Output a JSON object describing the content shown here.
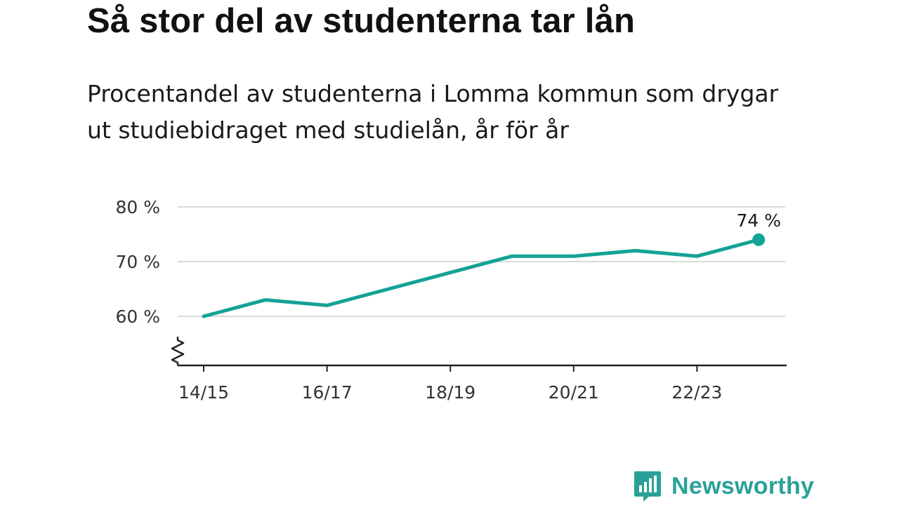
{
  "title": "Så stor del av studenterna tar lån",
  "subtitle": "Procentandel av studenterna i Lomma kommun som drygar ut studiebidraget med studielån, år för år",
  "chart_data": {
    "type": "line",
    "x": [
      "14/15",
      "15/16",
      "16/17",
      "17/18",
      "18/19",
      "19/20",
      "20/21",
      "21/22",
      "22/23",
      "23/24"
    ],
    "series": [
      {
        "values": [
          60,
          63,
          62,
          65,
          68,
          71,
          71,
          72,
          71,
          74
        ],
        "color": "#14a296"
      }
    ],
    "x_tick_labels": [
      "14/15",
      "16/17",
      "18/19",
      "20/21",
      "22/23"
    ],
    "y_ticks": [
      60,
      70,
      80
    ],
    "y_tick_labels": [
      "60 %",
      "70 %",
      "80 %"
    ],
    "ylim": [
      51,
      80
    ],
    "axis_break": true,
    "grid": true,
    "end_label": "74 %",
    "xlabel": "",
    "ylabel": ""
  },
  "brand": {
    "name": "Newsworthy",
    "color": "#2aa198"
  }
}
